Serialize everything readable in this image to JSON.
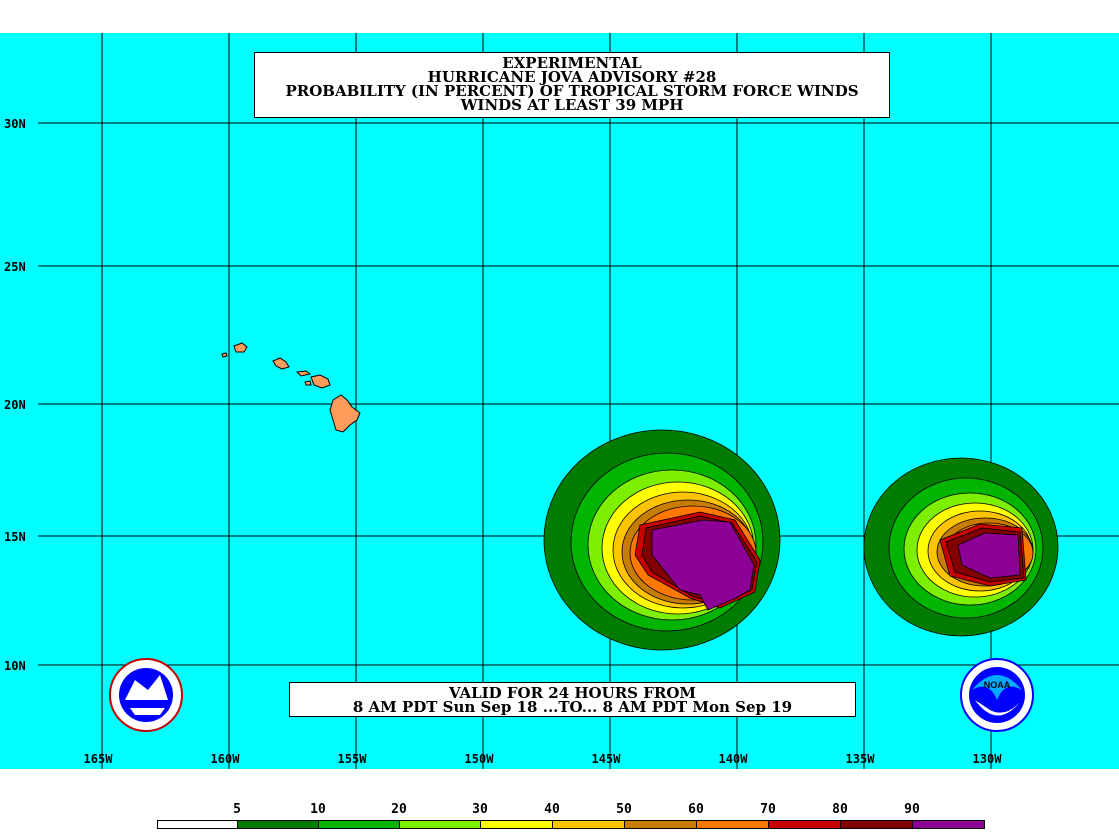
{
  "title": {
    "line1": "EXPERIMENTAL",
    "line2": "HURRICANE JOVA ADVISORY #28",
    "line3": "PROBABILITY (IN PERCENT) OF TROPICAL STORM FORCE WINDS",
    "line4": "WINDS AT LEAST 39 MPH"
  },
  "valid": {
    "line1": "VALID FOR 24 HOURS FROM",
    "line2": "8 AM PDT Sun Sep 18 ...TO... 8 AM PDT Mon Sep 19"
  },
  "lat_labels": [
    "30N",
    "25N",
    "20N",
    "15N",
    "10N"
  ],
  "lon_labels": [
    "165W",
    "160W",
    "155W",
    "150W",
    "145W",
    "140W",
    "135W",
    "130W"
  ],
  "legend": {
    "labels": [
      "5",
      "10",
      "20",
      "30",
      "40",
      "50",
      "60",
      "70",
      "80",
      "90"
    ],
    "colors": [
      "#ffffff",
      "#007c00",
      "#00b400",
      "#00d400",
      "#7cf000",
      "#ffff00",
      "#ffc400",
      "#c87c00",
      "#ff7800",
      "#c80000",
      "#820000",
      "#8c0096"
    ]
  },
  "colors": {
    "ocean": "#00ffff",
    "land": "#ff9c5c",
    "grid": "#000000"
  },
  "logos": {
    "left": "nws-logo",
    "right": "noaa-logo"
  }
}
